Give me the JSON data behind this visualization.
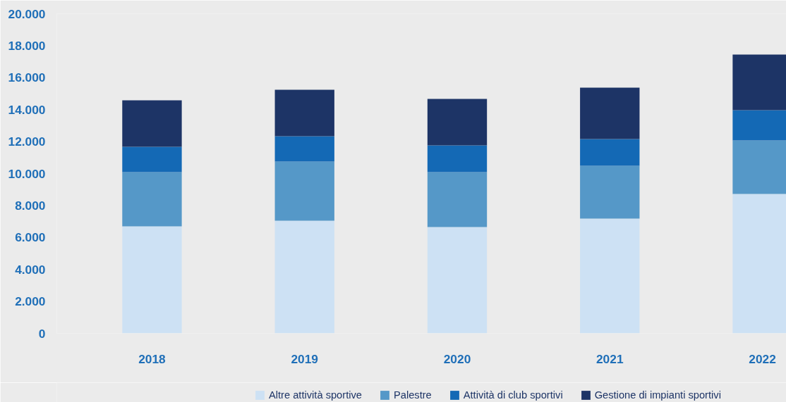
{
  "chart_data": {
    "type": "bar",
    "stacked": true,
    "categories": [
      "2018",
      "2019",
      "2020",
      "2021",
      "2022"
    ],
    "series": [
      {
        "name": "Altre attività sportive",
        "color": "#cde1f4",
        "values": [
          6700,
          7050,
          6650,
          7180,
          8720
        ]
      },
      {
        "name": "Palestre",
        "color": "#5598c8",
        "values": [
          3390,
          3700,
          3440,
          3300,
          3350
        ]
      },
      {
        "name": "Attività di club sportivi",
        "color": "#1469b5",
        "values": [
          1580,
          1580,
          1670,
          1680,
          1890
        ]
      },
      {
        "name": "Gestione di impianti sportivi",
        "color": "#1d3466",
        "values": [
          2910,
          2910,
          2910,
          3210,
          3480
        ]
      }
    ],
    "ylim": [
      0,
      20000
    ],
    "yticks": [
      {
        "value": 0,
        "label": "0"
      },
      {
        "value": 2000,
        "label": "2.000"
      },
      {
        "value": 4000,
        "label": "4.000"
      },
      {
        "value": 6000,
        "label": "6.000"
      },
      {
        "value": 8000,
        "label": "8.000"
      },
      {
        "value": 10000,
        "label": "10.000"
      },
      {
        "value": 12000,
        "label": "12.000"
      },
      {
        "value": 14000,
        "label": "14.000"
      },
      {
        "value": 16000,
        "label": "16.000"
      },
      {
        "value": 18000,
        "label": "18.000"
      },
      {
        "value": 20000,
        "label": "20.000"
      }
    ],
    "grid": false,
    "legend": "bottom"
  }
}
